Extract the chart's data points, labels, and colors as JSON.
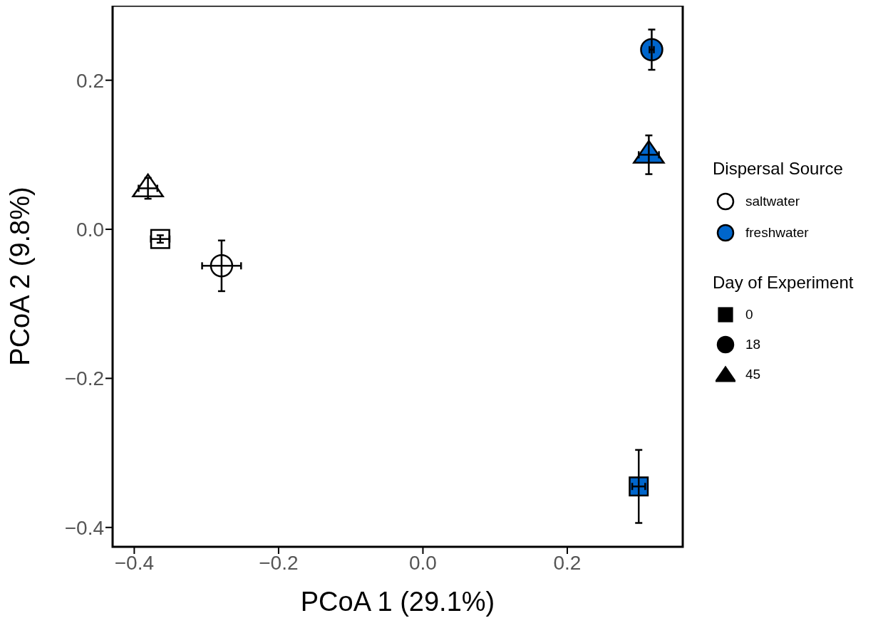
{
  "chart_data": {
    "type": "scatter",
    "xlabel": "PCoA 1 (29.1%)",
    "ylabel": "PCoA 2 (9.8%)",
    "legend_title": "Dispersal Source",
    "xlim": [
      -0.43,
      0.36
    ],
    "ylim": [
      -0.426,
      0.3
    ],
    "xticks": [
      {
        "value": -0.4,
        "label": "−0.4"
      },
      {
        "value": -0.2,
        "label": "−0.2"
      },
      {
        "value": 0,
        "label": "0.0"
      },
      {
        "value": 0.2,
        "label": "0.2"
      }
    ],
    "yticks": [
      {
        "value": -0.4,
        "label": "−0.4"
      },
      {
        "value": -0.2,
        "label": "−0.2"
      },
      {
        "value": 0,
        "label": "0.0"
      },
      {
        "value": 0.2,
        "label": "0.2"
      }
    ],
    "annotations": [
      "saltwater",
      "freshwater",
      "Day of Experiment",
      "0",
      "18",
      "45"
    ],
    "series": [
      {
        "color": "#ffffff",
        "marker": "triangle",
        "x": [
          -0.381
        ],
        "values": [
          0.055
        ],
        "errors": [
          0.014
        ],
        "xerrors": [
          0.013
        ]
      },
      {
        "color": "#ffffff",
        "marker": "square",
        "x": [
          -0.364
        ],
        "values": [
          -0.013
        ],
        "errors": [
          0.005
        ],
        "xerrors": [
          0.013
        ]
      },
      {
        "color": "#ffffff",
        "marker": "circle",
        "x": [
          -0.279
        ],
        "values": [
          -0.049
        ],
        "errors": [
          0.034
        ],
        "xerrors": [
          0.027
        ]
      },
      {
        "color": "#0066cc",
        "marker": "circle",
        "x": [
          0.317
        ],
        "values": [
          0.241
        ],
        "errors": [
          0.027
        ],
        "xerrors": [
          0.003
        ]
      },
      {
        "color": "#0066cc",
        "marker": "triangle",
        "x": [
          0.313
        ],
        "values": [
          0.1
        ],
        "errors": [
          0.026
        ],
        "xerrors": [
          0.014
        ]
      },
      {
        "color": "#0066cc",
        "marker": "square",
        "x": [
          0.299
        ],
        "values": [
          -0.345
        ],
        "errors": [
          0.049
        ],
        "xerrors": [
          0.009
        ]
      }
    ]
  }
}
